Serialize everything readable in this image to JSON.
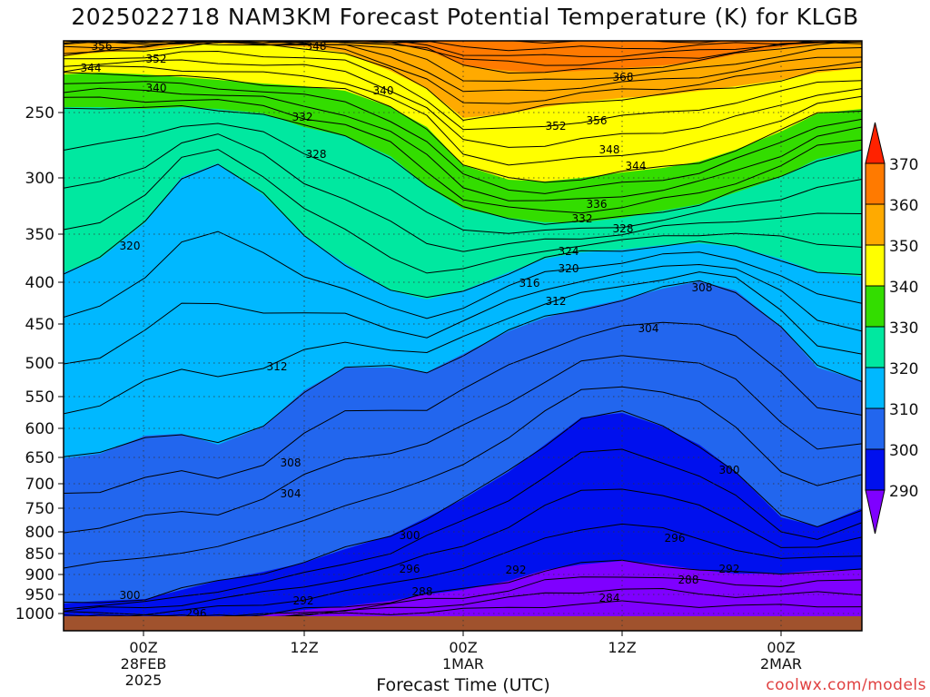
{
  "title": "2025022718 NAM3KM Forecast Potential Temperature (K) for KLGB",
  "xlabel": "Forecast Time (UTC)",
  "credit": "coolwx.com/models",
  "colors": {
    "ground": "#a0522d",
    "frame": "#000000",
    "bands": [
      "#7f00ff",
      "#0010ee",
      "#2266ee",
      "#00b8ff",
      "#00e8a0",
      "#33dd00",
      "#ffff00",
      "#ffaa00",
      "#ff7a00",
      "#ff2200"
    ]
  },
  "chart_data": {
    "type": "contour",
    "variable": "Potential Temperature (K)",
    "y_axis": {
      "ticks": [
        250,
        300,
        350,
        400,
        450,
        500,
        550,
        600,
        650,
        700,
        750,
        800,
        850,
        900,
        950,
        1000
      ],
      "scale": "log",
      "inverted": true
    },
    "x_axis": {
      "ticks": [
        {
          "line1": "00Z",
          "line2": "28FEB",
          "line3": "2025"
        },
        {
          "line1": "12Z",
          "line2": "",
          "line3": ""
        },
        {
          "line1": "00Z",
          "line2": "1MAR",
          "line3": ""
        },
        {
          "line1": "12Z",
          "line2": "",
          "line3": ""
        },
        {
          "line1": "00Z",
          "line2": "2MAR",
          "line3": ""
        }
      ]
    },
    "colorbar": {
      "levels": [
        290,
        300,
        310,
        320,
        330,
        340,
        350,
        360,
        370
      ]
    },
    "contour_labels": [
      "356",
      "348",
      "352",
      "344",
      "340",
      "340",
      "332",
      "328",
      "368",
      "352",
      "356",
      "348",
      "344",
      "336",
      "332",
      "328",
      "320",
      "324",
      "320",
      "316",
      "312",
      "308",
      "304",
      "312",
      "308",
      "304",
      "300",
      "300",
      "296",
      "296",
      "292",
      "292",
      "288",
      "288",
      "300",
      "296",
      "292",
      "284"
    ],
    "grid": true
  }
}
